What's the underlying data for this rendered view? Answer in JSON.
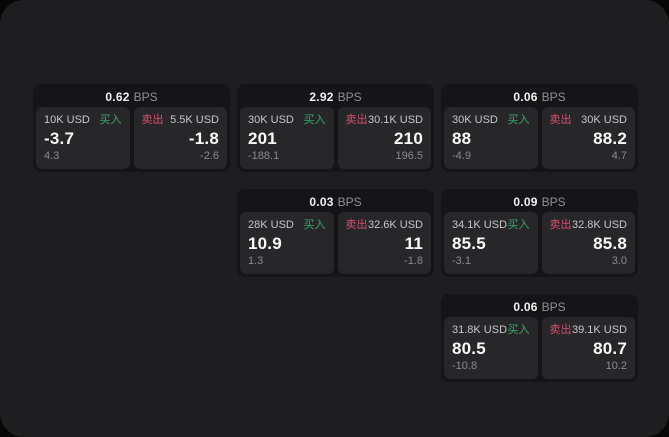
{
  "labels": {
    "bps_unit": "BPS",
    "buy": "买入",
    "sell": "卖出"
  },
  "colors": {
    "buy_green": "#3aa868",
    "sell_red": "#d84f6c",
    "window_bg": "#1e1e21",
    "card_bg": "#151517",
    "panel_bg": "#27272a"
  },
  "cards": [
    {
      "bps": "0.62",
      "buy": {
        "size": "10K USD",
        "price": "-3.7",
        "change": "4.3"
      },
      "sell": {
        "size": "5.5K USD",
        "price": "-1.8",
        "change": "-2.6"
      }
    },
    {
      "bps": "2.92",
      "buy": {
        "size": "30K USD",
        "price": "201",
        "change": "-188.1"
      },
      "sell": {
        "size": "30.1K USD",
        "price": "210",
        "change": "196.5"
      }
    },
    {
      "bps": "0.06",
      "buy": {
        "size": "30K USD",
        "price": "88",
        "change": "-4.9"
      },
      "sell": {
        "size": "30K USD",
        "price": "88.2",
        "change": "4.7"
      }
    },
    {
      "bps": "0.03",
      "buy": {
        "size": "28K USD",
        "price": "10.9",
        "change": "1.3"
      },
      "sell": {
        "size": "32.6K USD",
        "price": "11",
        "change": "-1.8"
      }
    },
    {
      "bps": "0.09",
      "buy": {
        "size": "34.1K USD",
        "price": "85.5",
        "change": "-3.1"
      },
      "sell": {
        "size": "32.8K USD",
        "price": "85.8",
        "change": "3.0"
      }
    },
    {
      "bps": "0.06",
      "buy": {
        "size": "31.8K USD",
        "price": "80.5",
        "change": "-10.8"
      },
      "sell": {
        "size": "39.1K USD",
        "price": "80.7",
        "change": "10.2"
      }
    }
  ]
}
